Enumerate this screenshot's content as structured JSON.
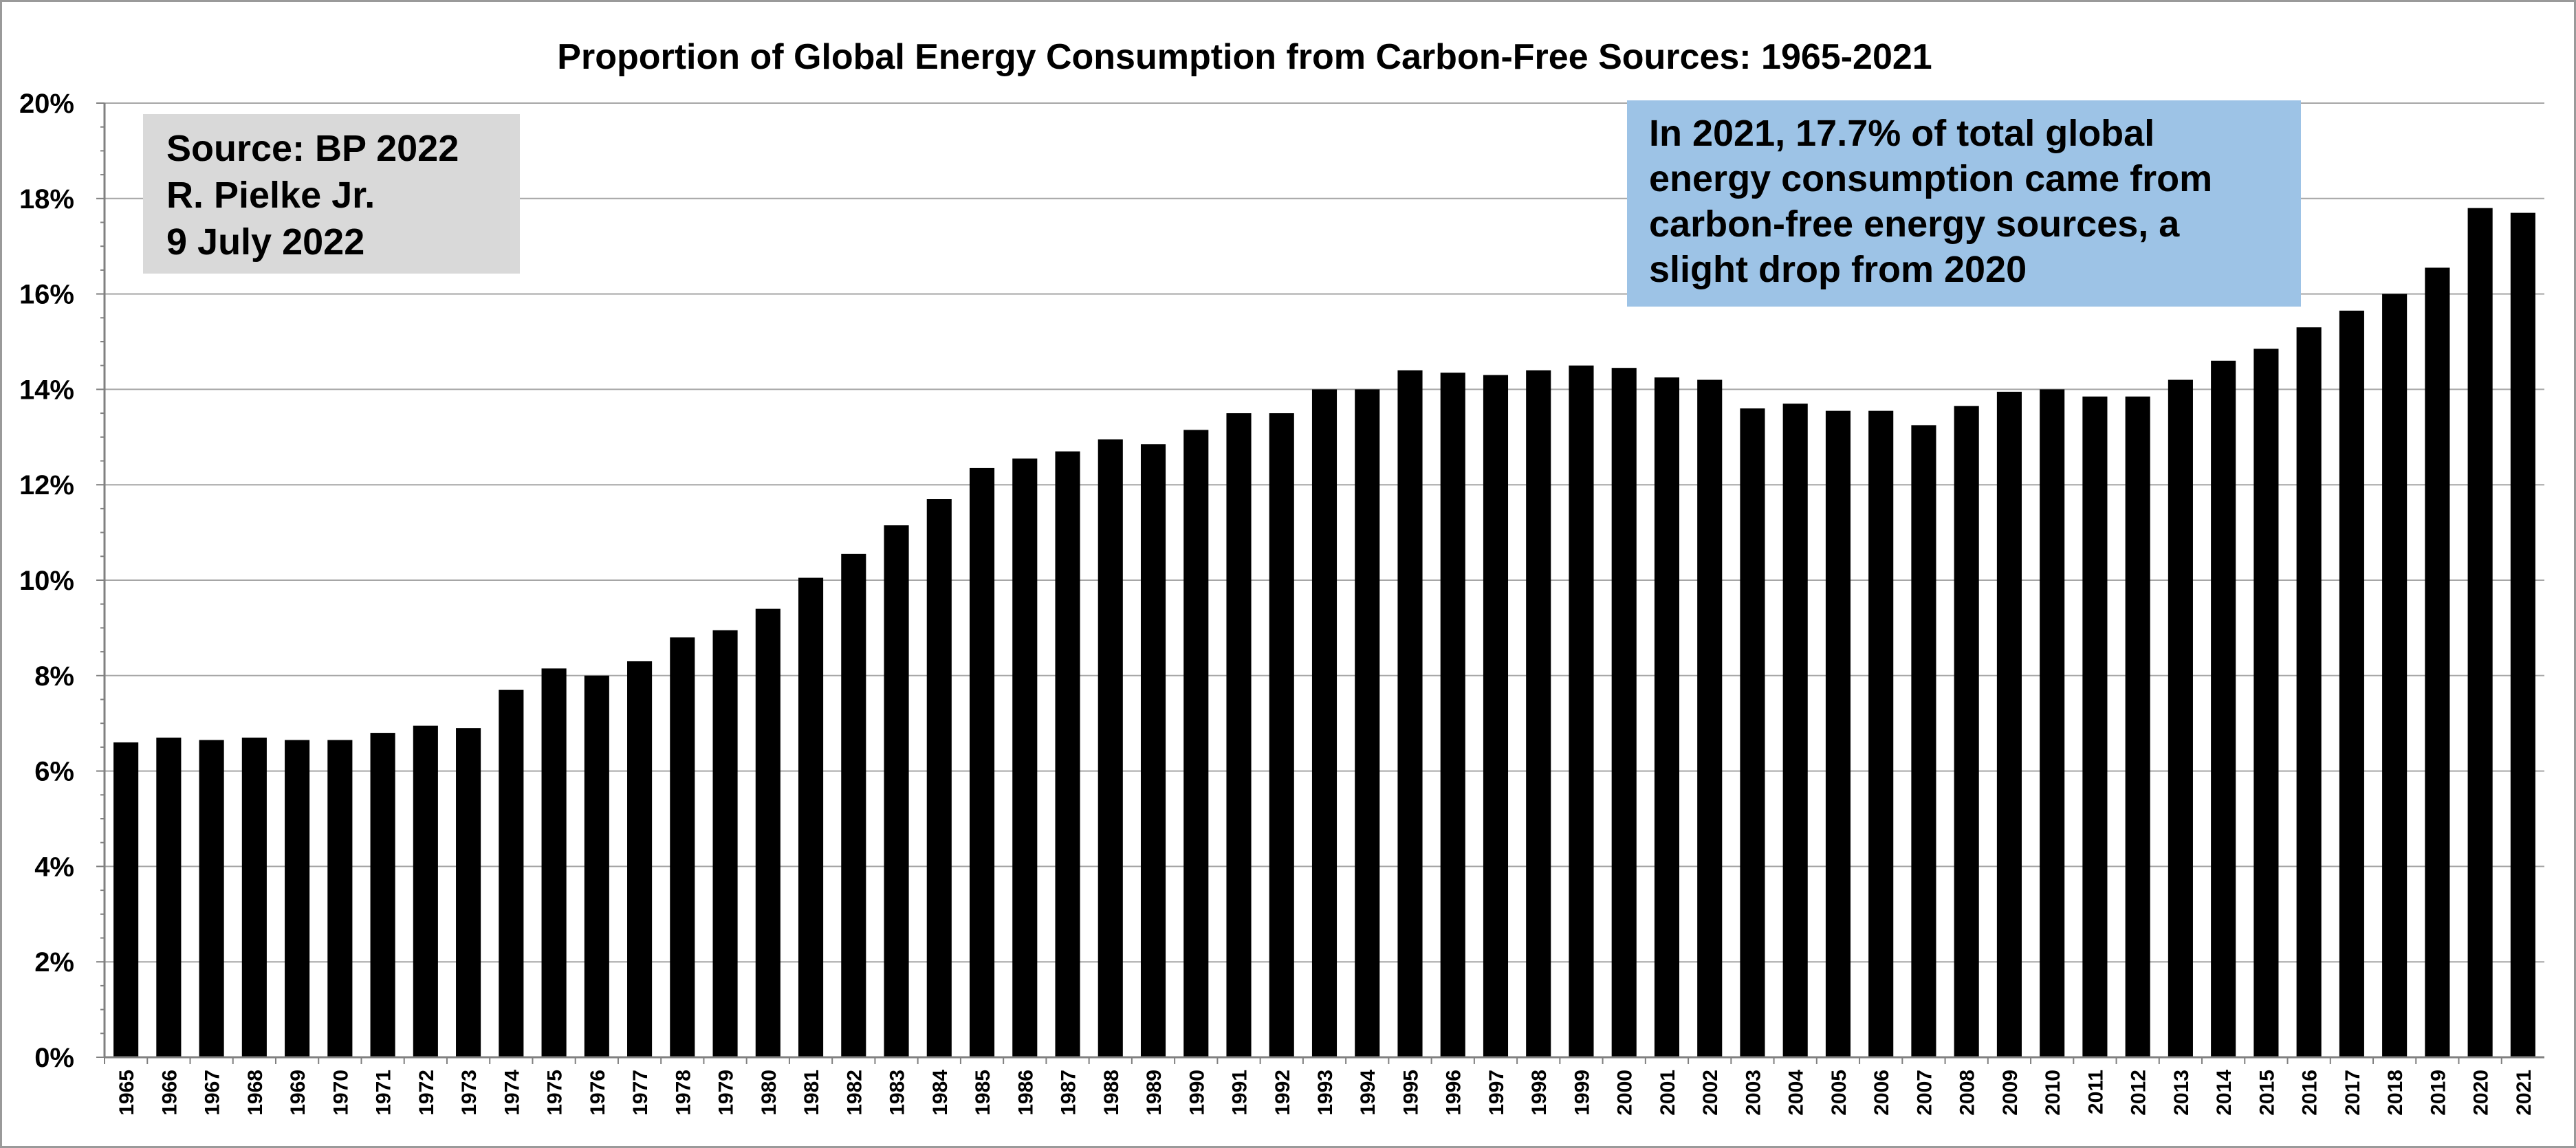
{
  "colors": {
    "bar": "#000000",
    "gridline": "#a6a6a6",
    "axis": "#808080",
    "source_box_fill": "#d9d9d9",
    "note_box_fill": "#9dc3e6",
    "background": "#ffffff"
  },
  "source_box": {
    "lines": [
      "Source: BP 2022",
      "R. Pielke Jr.",
      "9 July 2022"
    ]
  },
  "note_box": {
    "lines": [
      "In 2021, 17.7% of total global",
      "energy consumption came from",
      "carbon-free energy sources, a",
      "slight drop from 2020"
    ]
  },
  "chart_data": {
    "type": "bar",
    "title": "Proportion of Global Energy Consumption from Carbon-Free Sources:  1965-2021",
    "xlabel": "",
    "ylabel": "",
    "ylim": [
      0,
      20
    ],
    "yticks": [
      0,
      2,
      4,
      6,
      8,
      10,
      12,
      14,
      16,
      18,
      20
    ],
    "ytick_labels": [
      "0%",
      "2%",
      "4%",
      "6%",
      "8%",
      "10%",
      "12%",
      "14%",
      "16%",
      "18%",
      "20%"
    ],
    "grid": true,
    "legend": "none",
    "categories": [
      "1965",
      "1966",
      "1967",
      "1968",
      "1969",
      "1970",
      "1971",
      "1972",
      "1973",
      "1974",
      "1975",
      "1976",
      "1977",
      "1978",
      "1979",
      "1980",
      "1981",
      "1982",
      "1983",
      "1984",
      "1985",
      "1986",
      "1987",
      "1988",
      "1989",
      "1990",
      "1991",
      "1992",
      "1993",
      "1994",
      "1995",
      "1996",
      "1997",
      "1998",
      "1999",
      "2000",
      "2001",
      "2002",
      "2003",
      "2004",
      "2005",
      "2006",
      "2007",
      "2008",
      "2009",
      "2010",
      "2011",
      "2012",
      "2013",
      "2014",
      "2015",
      "2016",
      "2017",
      "2018",
      "2019",
      "2020",
      "2021"
    ],
    "values": [
      6.6,
      6.7,
      6.65,
      6.7,
      6.65,
      6.65,
      6.8,
      6.95,
      6.9,
      7.7,
      8.15,
      8.0,
      8.3,
      8.8,
      8.95,
      9.4,
      10.05,
      10.55,
      11.15,
      11.7,
      12.35,
      12.55,
      12.7,
      12.95,
      12.85,
      13.15,
      13.5,
      13.5,
      14.0,
      14.0,
      14.4,
      14.35,
      14.3,
      14.4,
      14.5,
      14.45,
      14.25,
      14.2,
      13.6,
      13.7,
      13.55,
      13.55,
      13.25,
      13.65,
      13.95,
      14.0,
      13.85,
      13.85,
      14.2,
      14.6,
      14.85,
      15.3,
      15.65,
      16.0,
      16.55,
      17.8,
      17.7
    ]
  }
}
